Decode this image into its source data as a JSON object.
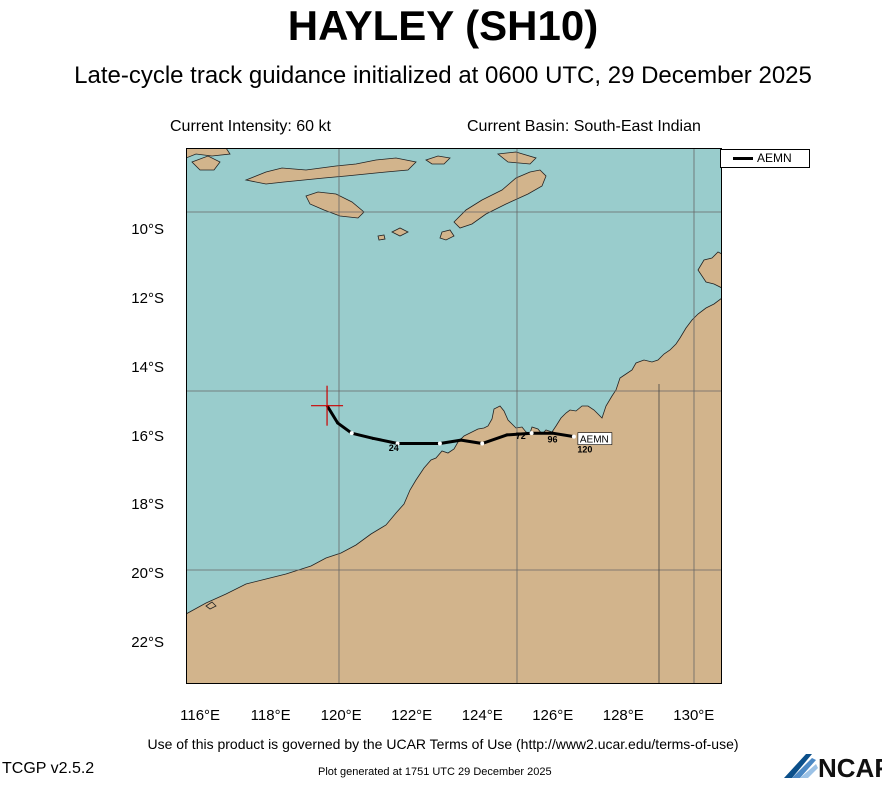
{
  "header": {
    "title": "HAYLEY (SH10)",
    "subtitle": "Late-cycle track guidance initialized at 0600 UTC, 29 December 2025",
    "intensity": "Current Intensity: 60 kt",
    "basin": "Current Basin: South-East Indian"
  },
  "map": {
    "lon_range": [
      115.6,
      130.8
    ],
    "lat_range": [
      -23.2,
      -7.6
    ],
    "lat_labels": [
      "10°S",
      "12°S",
      "14°S",
      "16°S",
      "18°S",
      "20°S",
      "22°S"
    ],
    "lon_labels": [
      "116°E",
      "118°E",
      "120°E",
      "122°E",
      "124°E",
      "126°E",
      "128°E",
      "130°E"
    ],
    "colors": {
      "ocean": "#99cccc",
      "land": "#d2b48c",
      "track": "#000000",
      "grid": "#666666",
      "storm": "#cc0000"
    },
    "current_position": {
      "lon": 119.6,
      "lat": -15.1
    },
    "legend": {
      "entries": [
        {
          "name": "AEMN"
        }
      ]
    },
    "track": {
      "name": "AEMN",
      "points": [
        {
          "lon": 119.6,
          "lat": -15.1
        },
        {
          "lon": 119.9,
          "lat": -15.6
        },
        {
          "lon": 120.3,
          "lat": -15.9
        },
        {
          "lon": 120.9,
          "lat": -16.05
        },
        {
          "lon": 121.6,
          "lat": -16.2
        },
        {
          "lon": 122.2,
          "lat": -16.2
        },
        {
          "lon": 122.8,
          "lat": -16.2
        },
        {
          "lon": 123.4,
          "lat": -16.1
        },
        {
          "lon": 124.0,
          "lat": -16.2
        },
        {
          "lon": 124.7,
          "lat": -15.95
        },
        {
          "lon": 125.4,
          "lat": -15.9
        },
        {
          "lon": 126.0,
          "lat": -15.9
        },
        {
          "lon": 126.6,
          "lat": -16.0
        }
      ],
      "hour_labels": [
        {
          "text": "24",
          "lon": 121.35,
          "lat": -16.3
        },
        {
          "text": "72",
          "lon": 124.95,
          "lat": -15.95
        },
        {
          "text": "96",
          "lon": 125.85,
          "lat": -16.05
        },
        {
          "text": "120",
          "lon": 126.7,
          "lat": -16.35
        }
      ],
      "end_label": "AEMN"
    }
  },
  "footer": {
    "terms": "Use of this product is governed by the UCAR Terms of Use (http://www2.ucar.edu/terms-of-use)",
    "version": "TCGP v2.5.2",
    "generated": "Plot generated at 1751 UTC   29 December 2025",
    "logo_text": "NCAR"
  }
}
